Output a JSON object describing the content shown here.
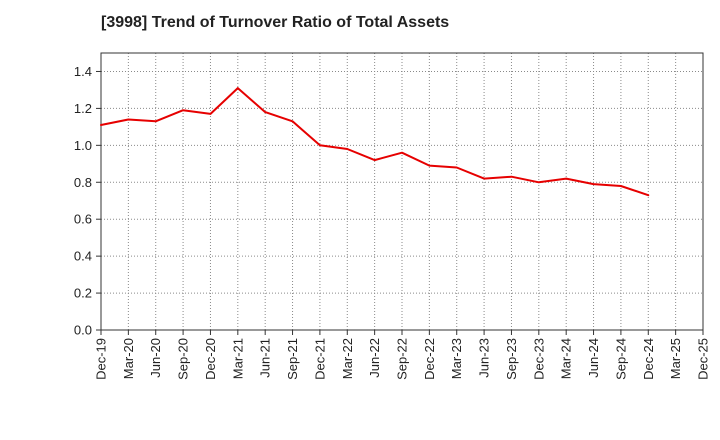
{
  "chart_data": {
    "type": "line",
    "title": "[3998]  Trend of Turnover Ratio of Total Assets",
    "xlabel": "",
    "ylabel": "",
    "x_tick_labels": [
      "Dec-19",
      "Mar-20",
      "Jun-20",
      "Sep-20",
      "Dec-20",
      "Mar-21",
      "Jun-21",
      "Sep-21",
      "Dec-21",
      "Mar-22",
      "Jun-22",
      "Sep-22",
      "Dec-22",
      "Mar-23",
      "Jun-23",
      "Sep-23",
      "Dec-23",
      "Mar-24",
      "Jun-24",
      "Sep-24",
      "Dec-24",
      "Mar-25",
      "Dec-25"
    ],
    "y_tick_labels": [
      "0.0",
      "0.2",
      "0.4",
      "0.6",
      "0.8",
      "1.0",
      "1.2",
      "1.4"
    ],
    "ylim": [
      0,
      1.5
    ],
    "grid": true,
    "series": [
      {
        "color": "#e60000",
        "x": [
          "Dec-19",
          "Mar-20",
          "Jun-20",
          "Sep-20",
          "Dec-20",
          "Mar-21",
          "Jun-21",
          "Sep-21",
          "Dec-21",
          "Mar-22",
          "Jun-22",
          "Sep-22",
          "Dec-22",
          "Mar-23",
          "Jun-23",
          "Sep-23",
          "Dec-23",
          "Mar-24",
          "Jun-24",
          "Sep-24",
          "Dec-24"
        ],
        "values": [
          1.11,
          1.14,
          1.13,
          1.19,
          1.17,
          1.31,
          1.18,
          1.13,
          1.0,
          0.98,
          0.92,
          0.96,
          0.89,
          0.88,
          0.82,
          0.83,
          0.8,
          0.82,
          0.79,
          0.78,
          0.73
        ]
      }
    ]
  }
}
